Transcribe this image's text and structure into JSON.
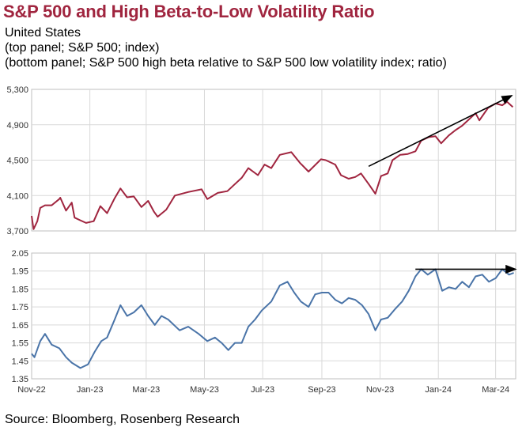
{
  "header": {
    "title": "S&P 500 and High Beta-to-Low Volatility Ratio",
    "line1": "United States",
    "line2": "(top panel; S&P 500; index)",
    "line3": "(bottom panel; S&P 500 high beta relative to S&P 500 low volatility index; ratio)"
  },
  "footer": {
    "source": "Source: Bloomberg, Rosenberg Research"
  },
  "colors": {
    "title": "#a0253f",
    "top_series": "#a0253f",
    "bottom_series": "#4a74a8",
    "grid": "#d9d9d9",
    "arrow": "#000000"
  },
  "chart_data": [
    {
      "type": "line",
      "panel": "top",
      "ylim": [
        3700,
        5300
      ],
      "yticks": [
        "5,300",
        "4,900",
        "4,500",
        "4,100",
        "3,700"
      ],
      "grid": true,
      "x_start": "2022-11-01",
      "x_end": "2024-03-22",
      "series": [
        {
          "values": [
            [
              "2022-11-01",
              3870
            ],
            [
              "2022-11-03",
              3720
            ],
            [
              "2022-11-07",
              3810
            ],
            [
              "2022-11-10",
              3960
            ],
            [
              "2022-11-15",
              3990
            ],
            [
              "2022-11-22",
              3990
            ],
            [
              "2022-11-30",
              4060
            ],
            [
              "2022-12-01",
              4075
            ],
            [
              "2022-12-07",
              3930
            ],
            [
              "2022-12-13",
              4020
            ],
            [
              "2022-12-16",
              3850
            ],
            [
              "2022-12-22",
              3820
            ],
            [
              "2022-12-28",
              3790
            ],
            [
              "2023-01-05",
              3810
            ],
            [
              "2023-01-12",
              3980
            ],
            [
              "2023-01-19",
              3900
            ],
            [
              "2023-01-27",
              4070
            ],
            [
              "2023-02-02",
              4180
            ],
            [
              "2023-02-09",
              4080
            ],
            [
              "2023-02-16",
              4090
            ],
            [
              "2023-02-24",
              3970
            ],
            [
              "2023-03-03",
              4040
            ],
            [
              "2023-03-09",
              3920
            ],
            [
              "2023-03-13",
              3860
            ],
            [
              "2023-03-22",
              3940
            ],
            [
              "2023-03-31",
              4100
            ],
            [
              "2023-04-14",
              4140
            ],
            [
              "2023-04-28",
              4170
            ],
            [
              "2023-05-04",
              4060
            ],
            [
              "2023-05-15",
              4130
            ],
            [
              "2023-05-25",
              4150
            ],
            [
              "2023-06-01",
              4220
            ],
            [
              "2023-06-09",
              4300
            ],
            [
              "2023-06-16",
              4410
            ],
            [
              "2023-06-26",
              4330
            ],
            [
              "2023-07-03",
              4450
            ],
            [
              "2023-07-10",
              4410
            ],
            [
              "2023-07-19",
              4560
            ],
            [
              "2023-07-31",
              4590
            ],
            [
              "2023-08-09",
              4470
            ],
            [
              "2023-08-18",
              4370
            ],
            [
              "2023-08-31",
              4510
            ],
            [
              "2023-09-05",
              4500
            ],
            [
              "2023-09-15",
              4450
            ],
            [
              "2023-09-21",
              4330
            ],
            [
              "2023-09-29",
              4290
            ],
            [
              "2023-10-06",
              4310
            ],
            [
              "2023-10-12",
              4350
            ],
            [
              "2023-10-20",
              4230
            ],
            [
              "2023-10-27",
              4120
            ],
            [
              "2023-11-02",
              4320
            ],
            [
              "2023-11-09",
              4350
            ],
            [
              "2023-11-14",
              4500
            ],
            [
              "2023-11-22",
              4560
            ],
            [
              "2023-11-30",
              4570
            ],
            [
              "2023-12-08",
              4600
            ],
            [
              "2023-12-14",
              4720
            ],
            [
              "2023-12-22",
              4760
            ],
            [
              "2023-12-29",
              4770
            ],
            [
              "2024-01-04",
              4690
            ],
            [
              "2024-01-12",
              4780
            ],
            [
              "2024-01-19",
              4840
            ],
            [
              "2024-01-26",
              4890
            ],
            [
              "2024-02-02",
              4960
            ],
            [
              "2024-02-09",
              5030
            ],
            [
              "2024-02-13",
              4950
            ],
            [
              "2024-02-22",
              5090
            ],
            [
              "2024-03-01",
              5140
            ],
            [
              "2024-03-08",
              5120
            ],
            [
              "2024-03-13",
              5160
            ],
            [
              "2024-03-19",
              5100
            ]
          ]
        }
      ],
      "arrow": [
        [
          "2023-10-20",
          4430
        ],
        [
          "2024-03-18",
          5230
        ]
      ]
    },
    {
      "type": "line",
      "panel": "bottom",
      "ylim": [
        1.35,
        2.05
      ],
      "yticks": [
        "2.05",
        "1.95",
        "1.85",
        "1.75",
        "1.65",
        "1.55",
        "1.45",
        "1.35"
      ],
      "xticks": [
        "Nov-22",
        "Jan-23",
        "Mar-23",
        "May-23",
        "Jul-23",
        "Sep-23",
        "Nov-23",
        "Jan-24",
        "Mar-24"
      ],
      "grid": true,
      "series": [
        {
          "values": [
            [
              "2022-11-01",
              1.49
            ],
            [
              "2022-11-04",
              1.47
            ],
            [
              "2022-11-10",
              1.56
            ],
            [
              "2022-11-15",
              1.6
            ],
            [
              "2022-11-22",
              1.54
            ],
            [
              "2022-11-30",
              1.52
            ],
            [
              "2022-12-07",
              1.47
            ],
            [
              "2022-12-13",
              1.44
            ],
            [
              "2022-12-22",
              1.41
            ],
            [
              "2022-12-30",
              1.43
            ],
            [
              "2023-01-06",
              1.5
            ],
            [
              "2023-01-13",
              1.56
            ],
            [
              "2023-01-19",
              1.58
            ],
            [
              "2023-01-27",
              1.68
            ],
            [
              "2023-02-02",
              1.76
            ],
            [
              "2023-02-09",
              1.7
            ],
            [
              "2023-02-16",
              1.72
            ],
            [
              "2023-02-24",
              1.76
            ],
            [
              "2023-03-03",
              1.7
            ],
            [
              "2023-03-10",
              1.65
            ],
            [
              "2023-03-17",
              1.7
            ],
            [
              "2023-03-24",
              1.68
            ],
            [
              "2023-04-05",
              1.62
            ],
            [
              "2023-04-14",
              1.64
            ],
            [
              "2023-04-25",
              1.6
            ],
            [
              "2023-05-04",
              1.56
            ],
            [
              "2023-05-12",
              1.58
            ],
            [
              "2023-05-19",
              1.55
            ],
            [
              "2023-05-26",
              1.51
            ],
            [
              "2023-06-02",
              1.55
            ],
            [
              "2023-06-09",
              1.55
            ],
            [
              "2023-06-16",
              1.64
            ],
            [
              "2023-06-23",
              1.68
            ],
            [
              "2023-06-30",
              1.73
            ],
            [
              "2023-07-10",
              1.78
            ],
            [
              "2023-07-19",
              1.87
            ],
            [
              "2023-07-27",
              1.89
            ],
            [
              "2023-08-03",
              1.83
            ],
            [
              "2023-08-10",
              1.78
            ],
            [
              "2023-08-18",
              1.75
            ],
            [
              "2023-08-25",
              1.82
            ],
            [
              "2023-09-01",
              1.83
            ],
            [
              "2023-09-08",
              1.83
            ],
            [
              "2023-09-15",
              1.79
            ],
            [
              "2023-09-22",
              1.77
            ],
            [
              "2023-09-29",
              1.8
            ],
            [
              "2023-10-06",
              1.79
            ],
            [
              "2023-10-13",
              1.76
            ],
            [
              "2023-10-20",
              1.71
            ],
            [
              "2023-10-27",
              1.62
            ],
            [
              "2023-11-02",
              1.68
            ],
            [
              "2023-11-09",
              1.69
            ],
            [
              "2023-11-17",
              1.74
            ],
            [
              "2023-11-24",
              1.78
            ],
            [
              "2023-12-01",
              1.84
            ],
            [
              "2023-12-08",
              1.92
            ],
            [
              "2023-12-14",
              1.96
            ],
            [
              "2023-12-21",
              1.93
            ],
            [
              "2023-12-29",
              1.96
            ],
            [
              "2024-01-05",
              1.84
            ],
            [
              "2024-01-12",
              1.86
            ],
            [
              "2024-01-19",
              1.85
            ],
            [
              "2024-01-26",
              1.89
            ],
            [
              "2024-02-02",
              1.86
            ],
            [
              "2024-02-09",
              1.92
            ],
            [
              "2024-02-16",
              1.93
            ],
            [
              "2024-02-23",
              1.89
            ],
            [
              "2024-03-01",
              1.91
            ],
            [
              "2024-03-08",
              1.96
            ],
            [
              "2024-03-15",
              1.93
            ],
            [
              "2024-03-20",
              1.94
            ]
          ]
        }
      ],
      "arrow": [
        [
          "2023-12-08",
          1.96
        ],
        [
          "2024-03-22",
          1.96
        ]
      ]
    }
  ]
}
